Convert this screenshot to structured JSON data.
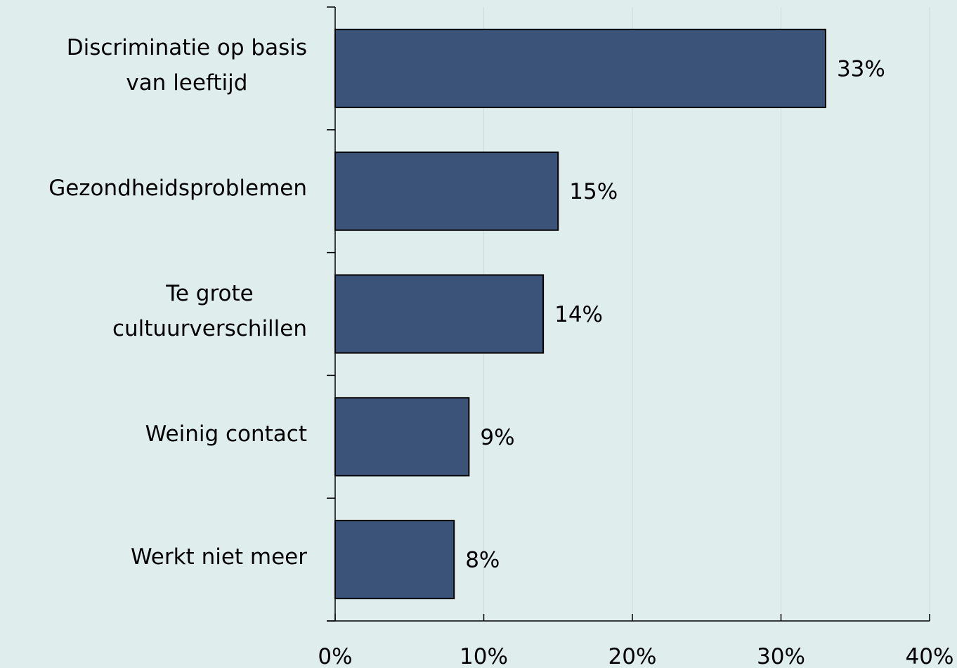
{
  "chart_data": {
    "type": "bar",
    "orientation": "horizontal",
    "categories": [
      "Discriminatie op basis\nvan leeftijd",
      "Gezondheidsproblemen",
      "Te grote\ncultuurverschillen",
      "Weinig contact",
      "Werkt niet meer"
    ],
    "values": [
      33,
      15,
      14,
      9,
      8
    ],
    "value_labels": [
      "33%",
      "15%",
      "14%",
      "9%",
      "8%"
    ],
    "color": "#3b5378",
    "xlim": [
      0,
      40
    ],
    "xticks": [
      {
        "value": 0,
        "label": "0%"
      },
      {
        "value": 10,
        "label": "10%"
      },
      {
        "value": 20,
        "label": "20%"
      },
      {
        "value": 30,
        "label": "30%"
      },
      {
        "value": 40,
        "label": "40%"
      }
    ],
    "grid": true
  }
}
